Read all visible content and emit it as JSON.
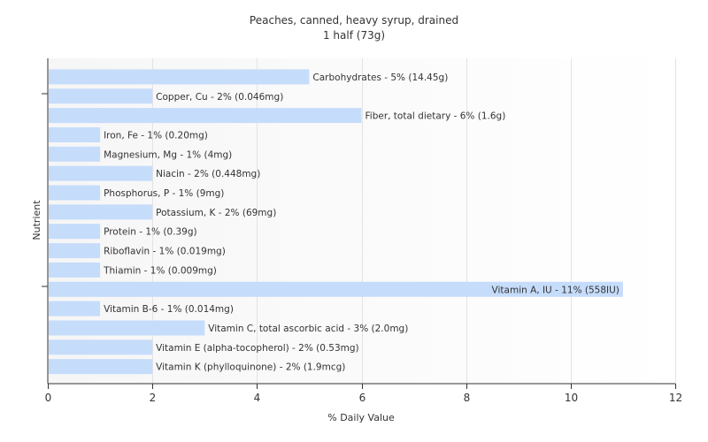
{
  "chart_data": {
    "type": "bar",
    "orientation": "horizontal",
    "title": "Peaches, canned, heavy syrup, drained",
    "subtitle": "1 half (73g)",
    "xlabel": "% Daily Value",
    "ylabel": "Nutrient",
    "xlim": [
      0,
      12
    ],
    "xticks": [
      "0",
      "2",
      "4",
      "6",
      "8",
      "10",
      "12"
    ],
    "grid": true,
    "bar_color": "#c6dcfb",
    "categories": [
      "Carbohydrates",
      "Copper, Cu",
      "Fiber, total dietary",
      "Iron, Fe",
      "Magnesium, Mg",
      "Niacin",
      "Phosphorus, P",
      "Potassium, K",
      "Protein",
      "Riboflavin",
      "Thiamin",
      "Vitamin A, IU",
      "Vitamin B-6",
      "Vitamin C, total ascorbic acid",
      "Vitamin E (alpha-tocopherol)",
      "Vitamin K (phylloquinone)"
    ],
    "values": [
      5,
      2,
      6,
      1,
      1,
      2,
      1,
      2,
      1,
      1,
      1,
      11,
      1,
      3,
      2,
      2
    ],
    "labels": [
      "Carbohydrates - 5% (14.45g)",
      "Copper, Cu - 2% (0.046mg)",
      "Fiber, total dietary - 6% (1.6g)",
      "Iron, Fe - 1% (0.20mg)",
      "Magnesium, Mg - 1% (4mg)",
      "Niacin - 2% (0.448mg)",
      "Phosphorus, P - 1% (9mg)",
      "Potassium, K - 2% (69mg)",
      "Protein - 1% (0.39g)",
      "Riboflavin - 1% (0.019mg)",
      "Thiamin - 1% (0.009mg)",
      "Vitamin A, IU - 11% (558IU)",
      "Vitamin B-6 - 1% (0.014mg)",
      "Vitamin C, total ascorbic acid - 3% (2.0mg)",
      "Vitamin E (alpha-tocopherol) - 2% (0.53mg)",
      "Vitamin K (phylloquinone) - 2% (1.9mcg)"
    ]
  }
}
